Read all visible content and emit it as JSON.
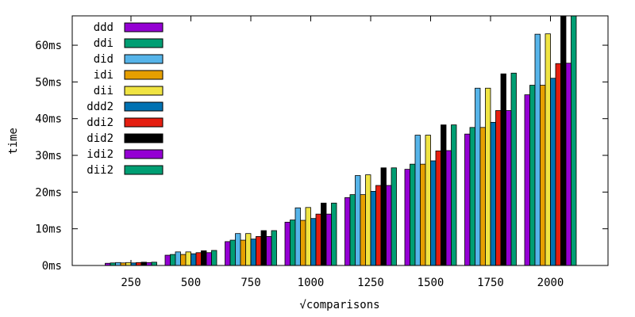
{
  "chart_data": {
    "type": "bar",
    "title": "",
    "xlabel": "√comparisons",
    "ylabel": "time",
    "categories": [
      "250",
      "500",
      "750",
      "1000",
      "1250",
      "1500",
      "1750",
      "2000"
    ],
    "y_ticks": [
      "0ms",
      "10ms",
      "20ms",
      "30ms",
      "40ms",
      "50ms",
      "60ms"
    ],
    "ylim": [
      0,
      68
    ],
    "unit": "ms",
    "grid": false,
    "legend_position": "top-left",
    "series": [
      {
        "name": "ddd",
        "color": "#9400d3",
        "values": [
          0.6,
          2.8,
          6.5,
          11.8,
          18.5,
          26.2,
          35.8,
          46.5
        ]
      },
      {
        "name": "ddi",
        "color": "#009e73",
        "values": [
          0.7,
          3.0,
          6.9,
          12.4,
          19.3,
          27.6,
          37.6,
          49.1
        ]
      },
      {
        "name": "did",
        "color": "#56b4e9",
        "values": [
          0.8,
          3.7,
          8.7,
          15.7,
          24.5,
          35.5,
          48.3,
          63.0
        ]
      },
      {
        "name": "idi",
        "color": "#e69f00",
        "values": [
          0.7,
          3.0,
          6.9,
          12.3,
          19.3,
          27.6,
          37.6,
          49.1
        ]
      },
      {
        "name": "dii",
        "color": "#f0e442",
        "values": [
          0.8,
          3.7,
          8.7,
          15.8,
          24.7,
          35.5,
          48.3,
          63.1
        ]
      },
      {
        "name": "ddd2",
        "color": "#0072b2",
        "values": [
          0.7,
          3.2,
          7.2,
          12.8,
          20.2,
          28.5,
          39.0,
          51.0
        ]
      },
      {
        "name": "ddi2",
        "color": "#e51e10",
        "values": [
          0.8,
          3.5,
          7.9,
          14.0,
          21.8,
          31.2,
          42.2,
          55.0
        ]
      },
      {
        "name": "did2",
        "color": "#000000",
        "values": [
          0.9,
          4.0,
          9.5,
          17.0,
          26.6,
          38.3,
          52.2,
          68.0
        ]
      },
      {
        "name": "idi2",
        "color": "#9400d3",
        "values": [
          0.8,
          3.5,
          7.9,
          14.0,
          21.8,
          31.3,
          42.2,
          55.1
        ]
      },
      {
        "name": "dii2",
        "color": "#009e73",
        "values": [
          0.9,
          4.1,
          9.5,
          17.0,
          26.6,
          38.3,
          52.4,
          68.0
        ]
      }
    ]
  }
}
